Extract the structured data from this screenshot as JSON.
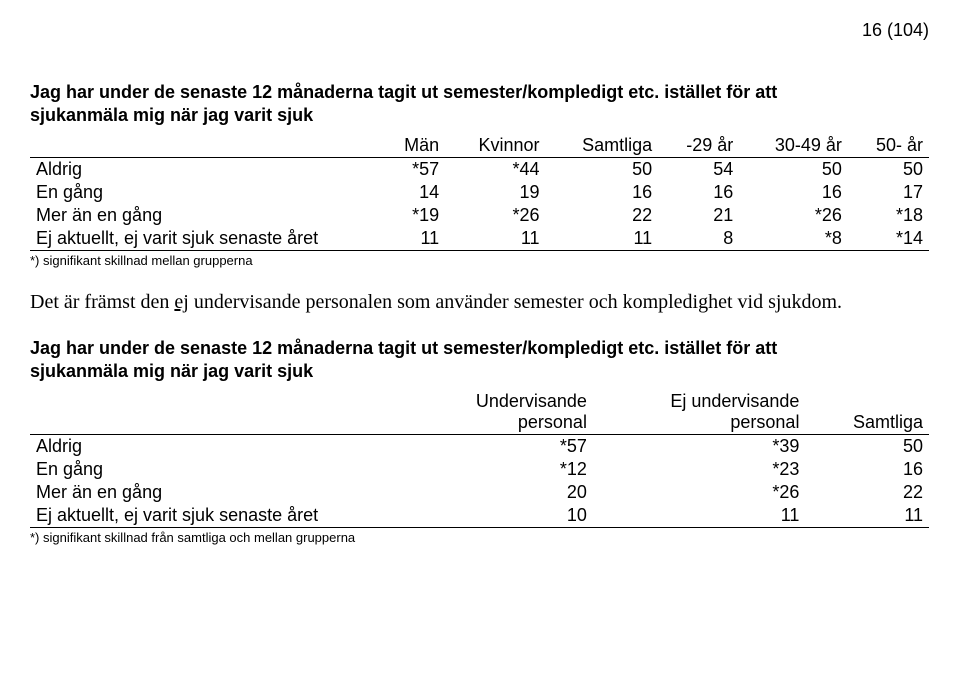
{
  "page_number": "16 (104)",
  "heading1_line1": "Jag har under de senaste 12 månaderna tagit ut semester/kompledigt etc. istället för att",
  "heading1_line2": "sjukanmäla mig när jag varit sjuk",
  "table1": {
    "headers": [
      "",
      "Män",
      "Kvinnor",
      "Samtliga",
      "-29 år",
      "30-49 år",
      "50- år"
    ],
    "rows": [
      [
        "Aldrig",
        "*57",
        "*44",
        "50",
        "54",
        "50",
        "50"
      ],
      [
        "En gång",
        "14",
        "19",
        "16",
        "16",
        "16",
        "17"
      ],
      [
        "Mer än en gång",
        "*19",
        "*26",
        "22",
        "21",
        "*26",
        "*18"
      ],
      [
        "Ej aktuellt, ej varit sjuk senaste året",
        "11",
        "11",
        "11",
        "8",
        "*8",
        "*14"
      ]
    ]
  },
  "footnote1": "*) signifikant skillnad mellan grupperna",
  "body_prefix": "Det är främst den ",
  "body_underlined": "ej",
  "body_suffix": " undervisande personalen som använder semester och kompledighet vid sjukdom.",
  "heading2_line1": "Jag har under de senaste 12 månaderna tagit ut semester/kompledigt etc. istället för att",
  "heading2_line2": "sjukanmäla mig när jag varit sjuk",
  "table2": {
    "headers": [
      "",
      "Undervisande personal",
      "Ej undervisande personal",
      "Samtliga"
    ],
    "rows": [
      [
        "Aldrig",
        "*57",
        "*39",
        "50"
      ],
      [
        "En gång",
        "*12",
        "*23",
        "16"
      ],
      [
        "Mer än en gång",
        "20",
        "*26",
        "22"
      ],
      [
        "Ej aktuellt, ej varit sjuk senaste året",
        "10",
        "11",
        "11"
      ]
    ]
  },
  "footnote2": "*) signifikant skillnad från samtliga och mellan grupperna"
}
